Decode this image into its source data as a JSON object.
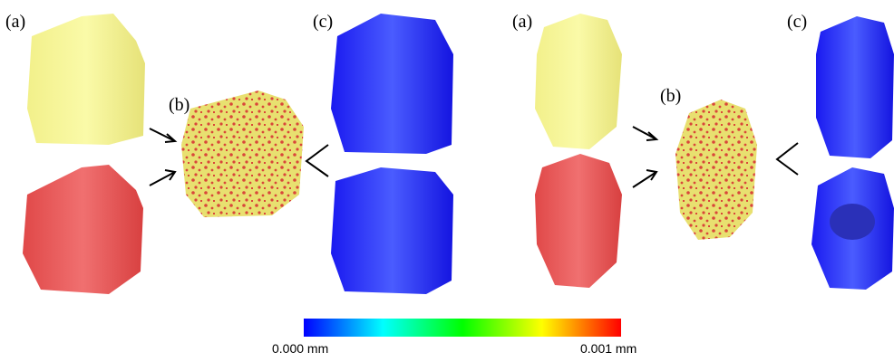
{
  "left": {
    "labels": [
      "(a)",
      "(b)",
      "(c)"
    ]
  },
  "right": {
    "labels": [
      "(a)",
      "(b)",
      "(c)"
    ]
  },
  "colorbar": {
    "min_label": "0.000 mm",
    "max_label": "0.001 mm"
  }
}
